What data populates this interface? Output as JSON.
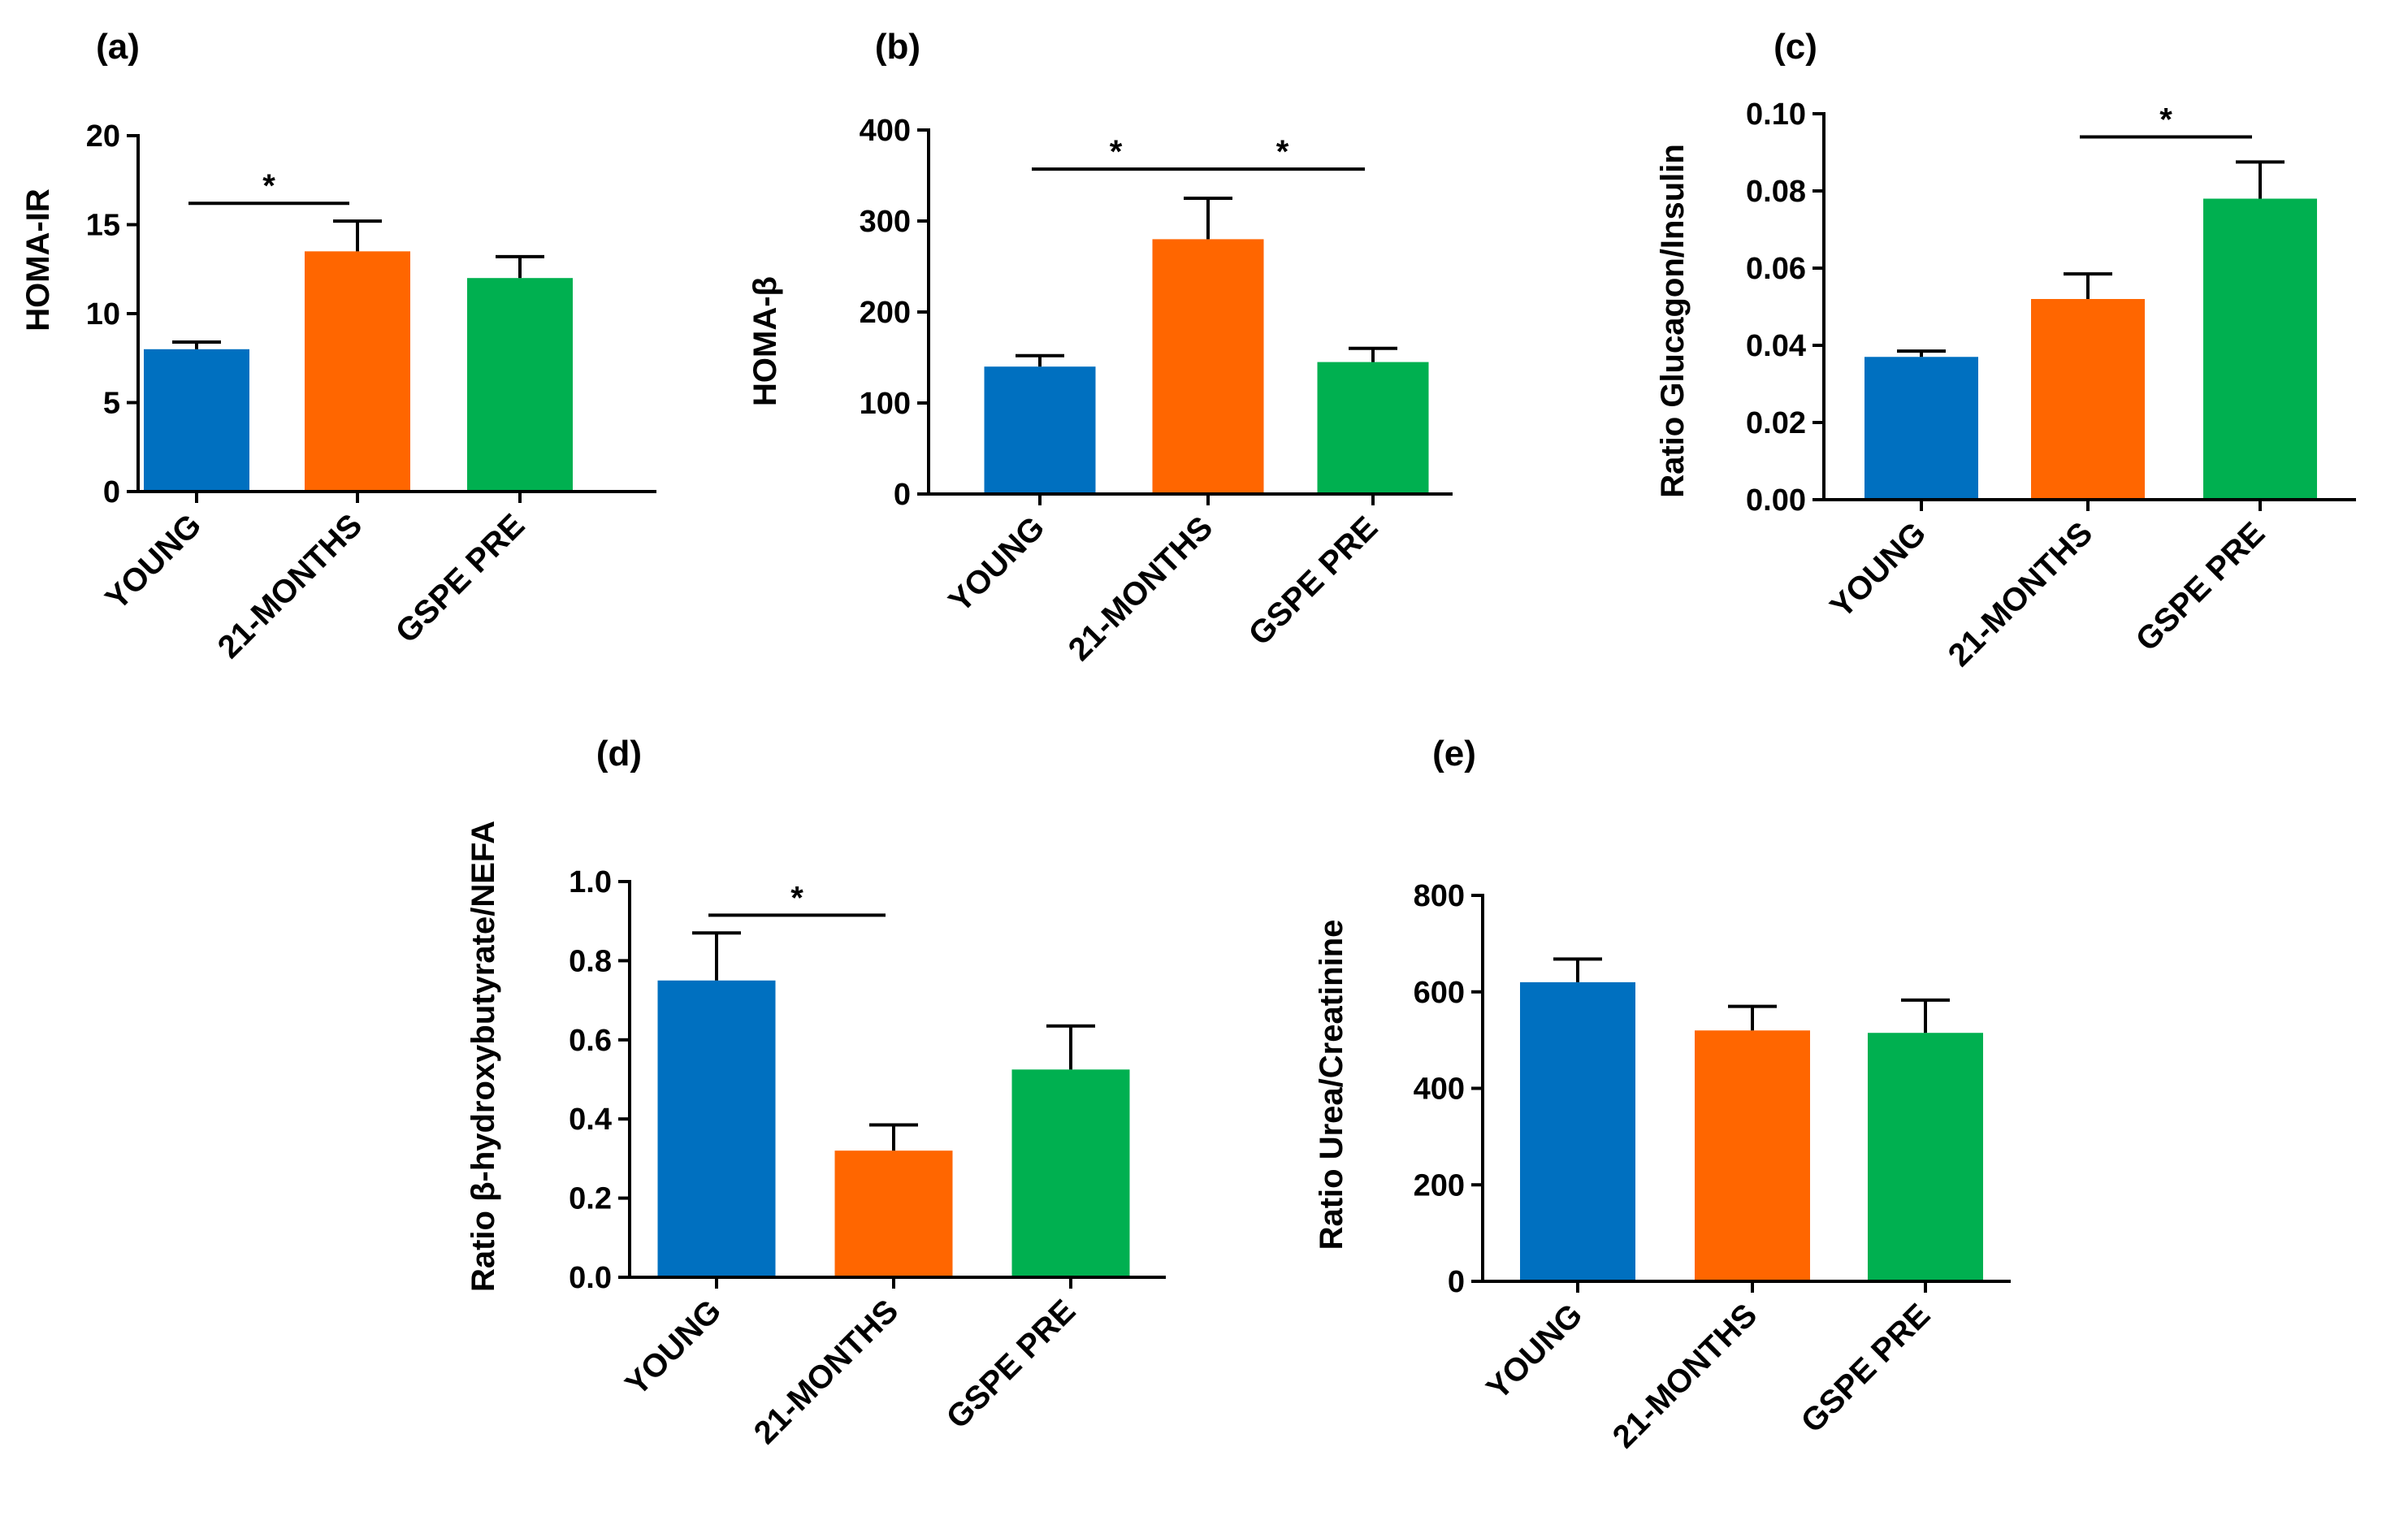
{
  "figure": {
    "colors": {
      "bar_colors": [
        "#0070C0",
        "#FF6600",
        "#00B050"
      ],
      "axis": "#000000"
    }
  },
  "chart_data": [
    {
      "panel": "(a)",
      "type": "bar",
      "categories": [
        "YOUNG",
        "21-MONTHS",
        "GSPE PRE"
      ],
      "values": [
        8,
        13.5,
        12
      ],
      "errors": [
        0.4,
        1.7,
        1.2
      ],
      "ylabel": "HOMA-IR",
      "xlabel": "",
      "ylim": [
        0,
        20
      ],
      "yticks": [
        0,
        5,
        10,
        15,
        20
      ],
      "tick_labels": [
        "0",
        "5",
        "10",
        "15",
        "20"
      ],
      "significance": [
        {
          "from": 0,
          "to": 1,
          "at": 16.2,
          "label": "*"
        }
      ]
    },
    {
      "panel": "(b)",
      "type": "bar",
      "categories": [
        "YOUNG",
        "21-MONTHS",
        "GSPE PRE"
      ],
      "values": [
        140,
        280,
        145
      ],
      "errors": [
        12,
        45,
        15
      ],
      "ylabel": "HOMA-β",
      "xlabel": "",
      "ylim": [
        0,
        400
      ],
      "yticks": [
        0,
        100,
        200,
        300,
        400
      ],
      "tick_labels": [
        "0",
        "100",
        "200",
        "300",
        "400"
      ],
      "significance": [
        {
          "from": 0,
          "to": 1,
          "at": 357,
          "label": "*"
        },
        {
          "from": 1,
          "to": 2,
          "at": 357,
          "label": "*"
        }
      ]
    },
    {
      "panel": "(c)",
      "type": "bar",
      "categories": [
        "YOUNG",
        "21-MONTHS",
        "GSPE PRE"
      ],
      "values": [
        0.037,
        0.052,
        0.078
      ],
      "errors": [
        0.0015,
        0.0065,
        0.0095
      ],
      "ylabel": "Ratio Glucagon/Insulin",
      "xlabel": "",
      "ylim": [
        0,
        0.1
      ],
      "yticks": [
        0,
        0.02,
        0.04,
        0.06,
        0.08,
        0.1
      ],
      "tick_labels": [
        "0.00",
        "0.02",
        "0.04",
        "0.06",
        "0.08",
        "0.10"
      ],
      "significance": [
        {
          "from": 1,
          "to": 2,
          "at": 0.094,
          "label": "*"
        }
      ]
    },
    {
      "panel": "(d)",
      "type": "bar",
      "categories": [
        "YOUNG",
        "21-MONTHS",
        "GSPE PRE"
      ],
      "values": [
        0.75,
        0.32,
        0.525
      ],
      "errors": [
        0.12,
        0.065,
        0.11
      ],
      "ylabel": "Ratio β-hydroxybutyrate/NEFA",
      "xlabel": "",
      "ylim": [
        0,
        1
      ],
      "yticks": [
        0,
        0.2,
        0.4,
        0.6,
        0.8,
        1
      ],
      "tick_labels": [
        "0.0",
        "0.2",
        "0.4",
        "0.6",
        "0.8",
        "1.0"
      ],
      "significance": [
        {
          "from": 0,
          "to": 1,
          "at": 0.915,
          "label": "*"
        }
      ]
    },
    {
      "panel": "(e)",
      "type": "bar",
      "categories": [
        "YOUNG",
        "21-MONTHS",
        "GSPE PRE"
      ],
      "values": [
        620,
        520,
        515
      ],
      "errors": [
        48,
        50,
        68
      ],
      "ylabel": "Ratio Urea/Creatinine",
      "xlabel": "",
      "ylim": [
        0,
        800
      ],
      "yticks": [
        0,
        200,
        400,
        600,
        800
      ],
      "tick_labels": [
        "0",
        "200",
        "400",
        "600",
        "800"
      ],
      "significance": []
    }
  ]
}
